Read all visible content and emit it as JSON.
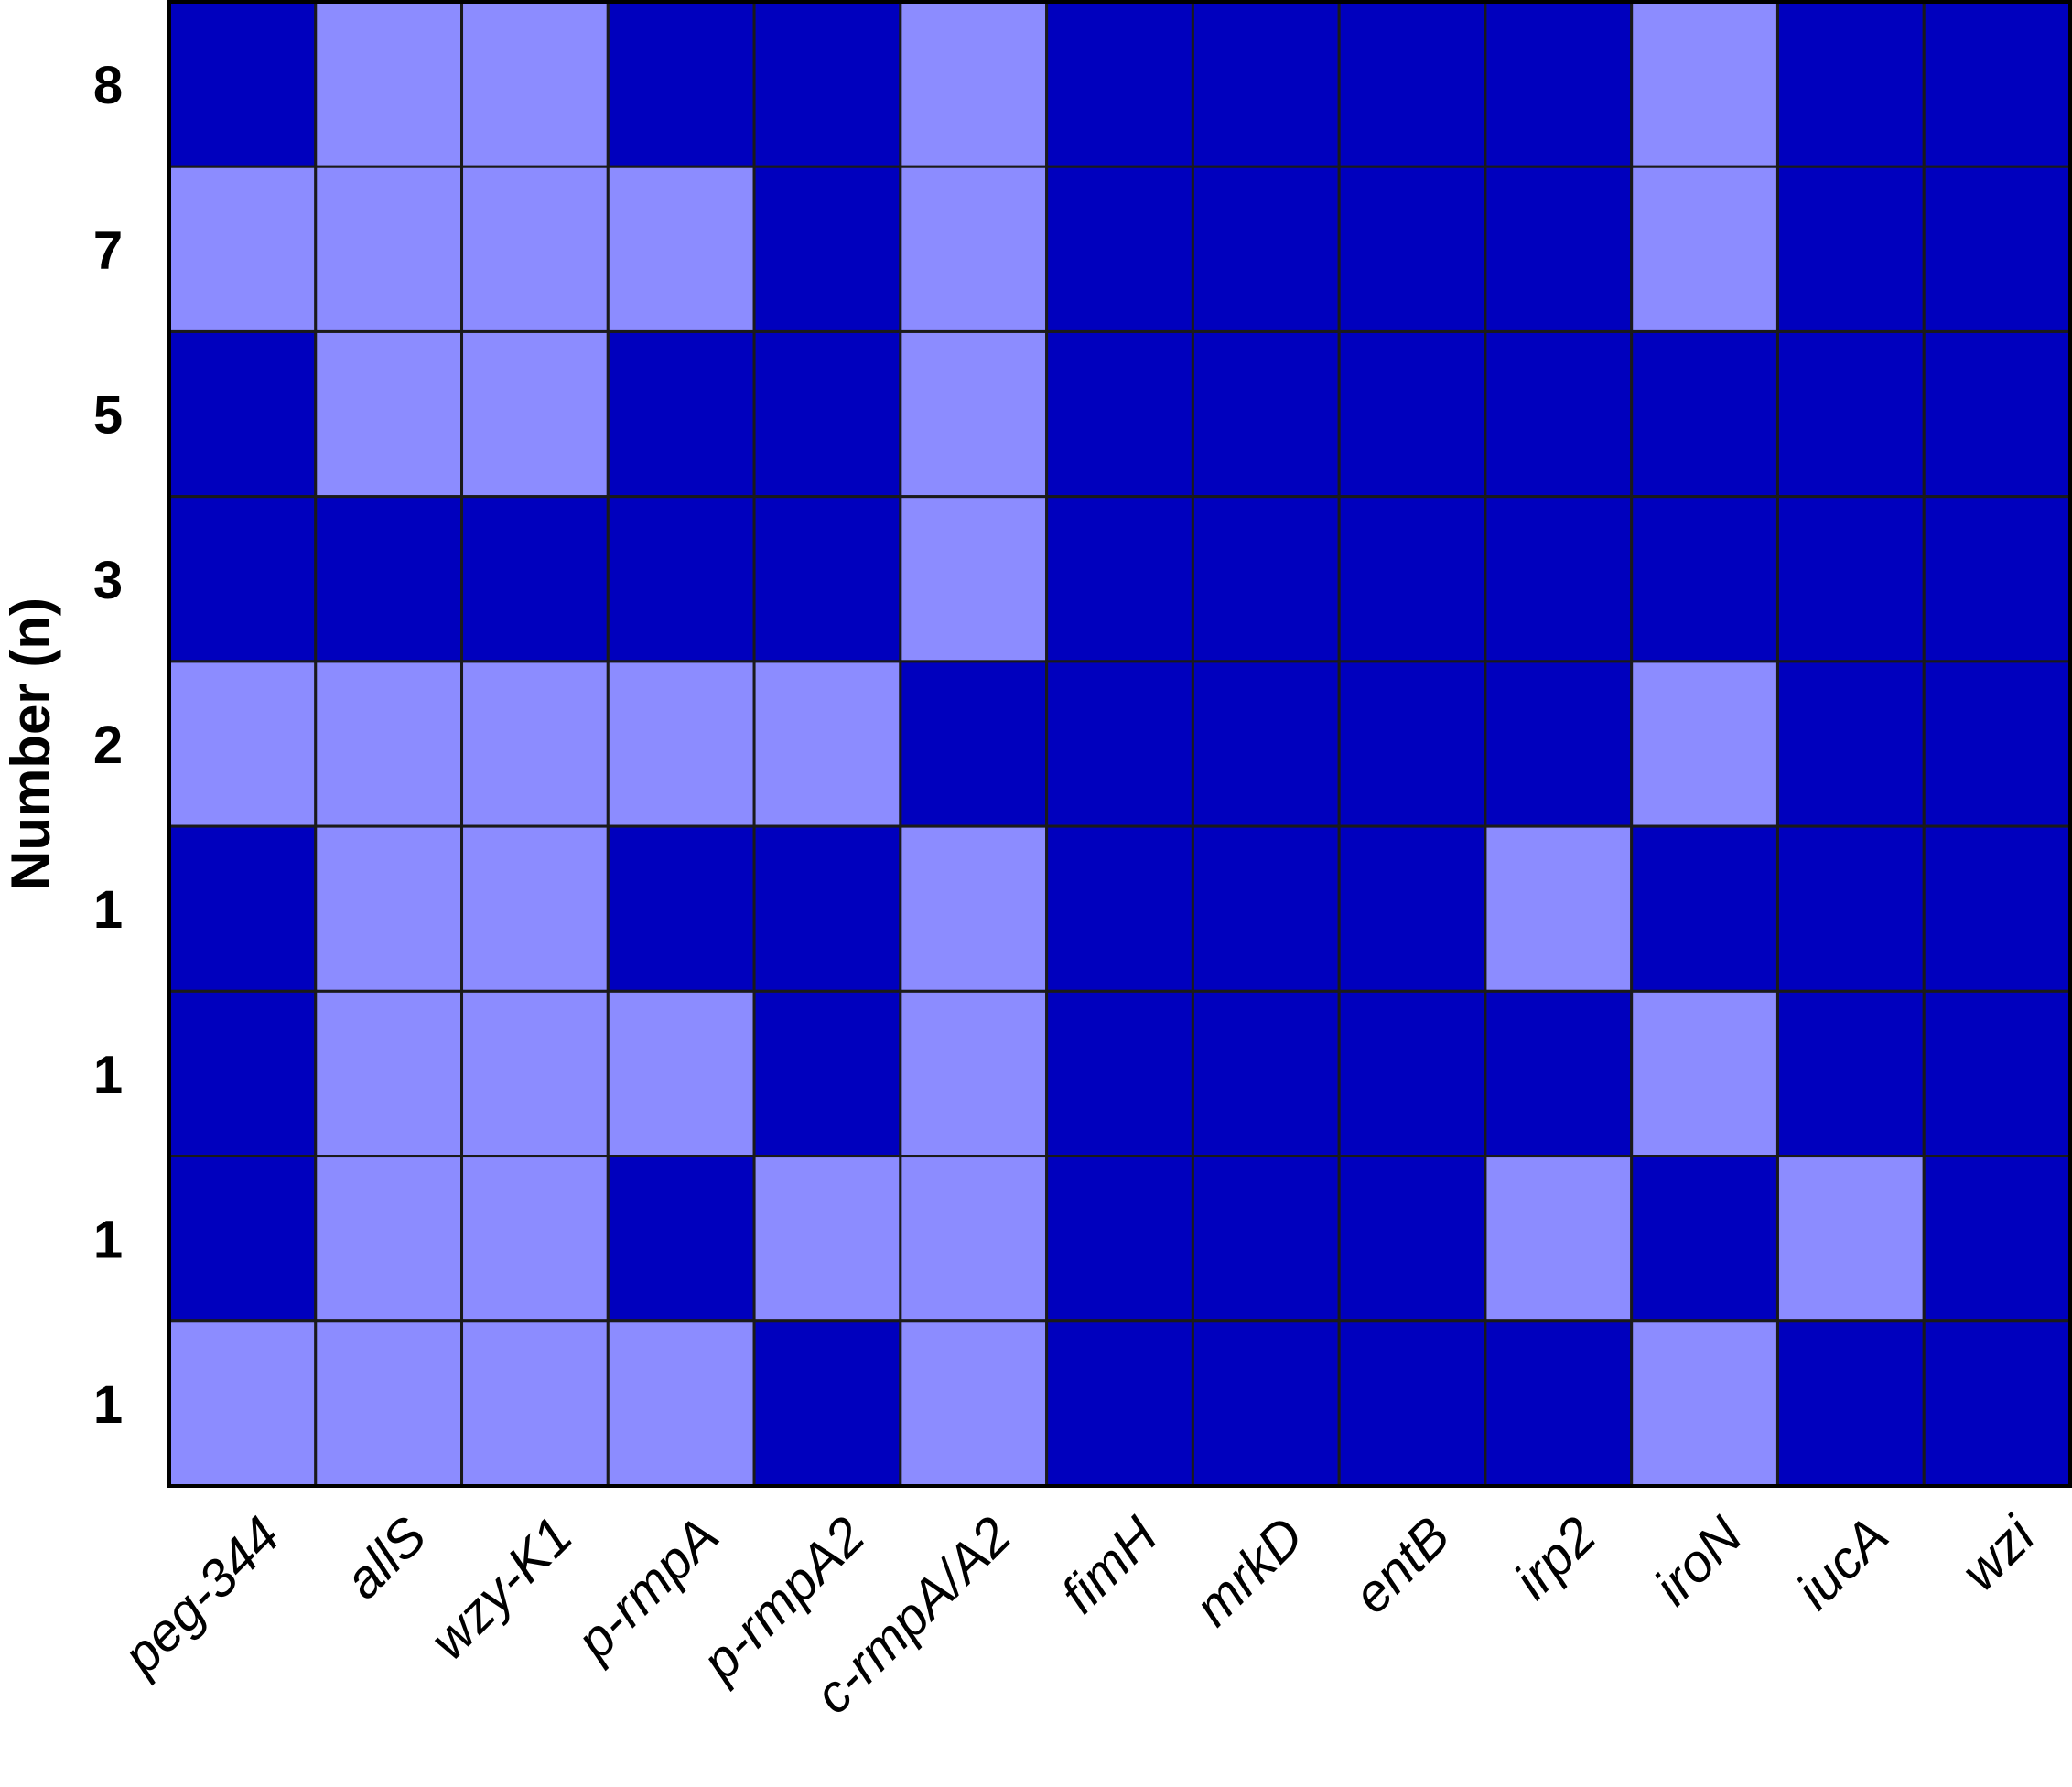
{
  "chart_data": {
    "type": "heatmap",
    "title": "",
    "xlabel": "",
    "ylabel": "Number (n)",
    "columns": [
      "peg-344",
      "allS",
      "wzy-K1",
      "p-rmpA",
      "p-rmpA2",
      "c-rmpA/A2",
      "fimH",
      "mrkD",
      "entB",
      "irp2",
      "iroN",
      "iucA",
      "wzi"
    ],
    "rows": [
      "8",
      "7",
      "5",
      "3",
      "2",
      "1",
      "1",
      "1",
      "1"
    ],
    "values": [
      [
        1,
        0,
        0,
        1,
        1,
        0,
        1,
        1,
        1,
        1,
        0,
        1,
        1
      ],
      [
        0,
        0,
        0,
        0,
        1,
        0,
        1,
        1,
        1,
        1,
        0,
        1,
        1
      ],
      [
        1,
        0,
        0,
        1,
        1,
        0,
        1,
        1,
        1,
        1,
        1,
        1,
        1
      ],
      [
        1,
        1,
        1,
        1,
        1,
        0,
        1,
        1,
        1,
        1,
        1,
        1,
        1
      ],
      [
        0,
        0,
        0,
        0,
        0,
        1,
        1,
        1,
        1,
        1,
        0,
        1,
        1
      ],
      [
        1,
        0,
        0,
        1,
        1,
        0,
        1,
        1,
        1,
        0,
        1,
        1,
        1
      ],
      [
        1,
        0,
        0,
        0,
        1,
        0,
        1,
        1,
        1,
        1,
        0,
        1,
        1
      ],
      [
        1,
        0,
        0,
        1,
        0,
        0,
        1,
        1,
        1,
        0,
        1,
        0,
        1
      ],
      [
        0,
        0,
        0,
        0,
        1,
        0,
        1,
        1,
        1,
        1,
        0,
        1,
        1
      ]
    ],
    "colors": {
      "1": "#0000be",
      "0": "#8c8cff",
      "border": "#1a1a1a"
    },
    "legend": "none",
    "grid": true
  }
}
